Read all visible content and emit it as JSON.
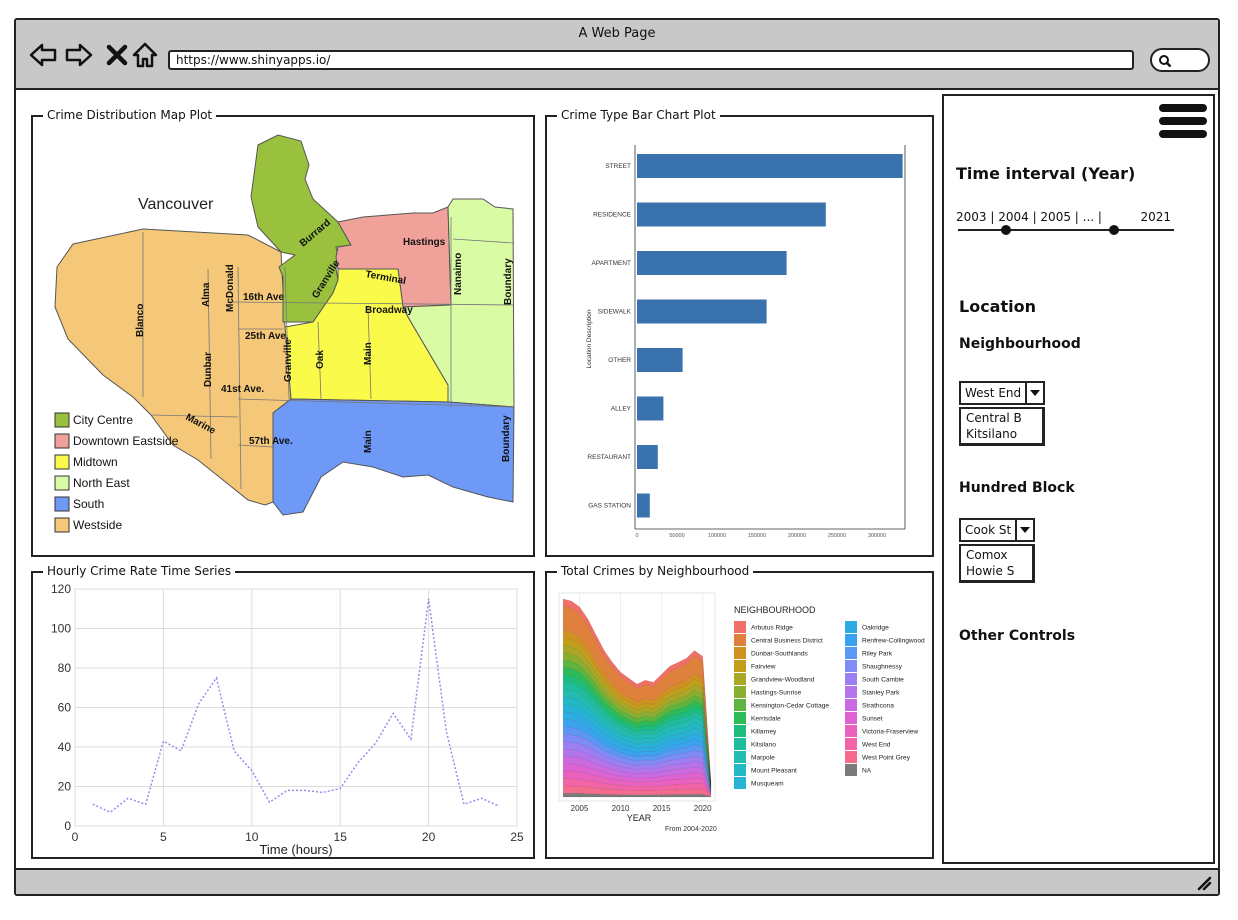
{
  "window": {
    "title": "A Web Page",
    "url": "https://www.shinyapps.io/"
  },
  "map_panel": {
    "title": "Crime Distribution Map Plot",
    "city_label": "Vancouver",
    "region_colors": {
      "City Centre": "#99c13e",
      "Downtown Eastside": "#f0a29a",
      "Midtown": "#fafa4a",
      "North East": "#d8fba4",
      "South": "#6e99f7",
      "Westside": "#f5c779"
    },
    "legend": [
      "City Centre",
      "Downtown Eastside",
      "Midtown",
      "North East",
      "South",
      "Westside"
    ],
    "street_labels": {
      "blanco": "Blanco",
      "alma": "Alma",
      "mcdonald": "McDonald",
      "granville_s": "Granville",
      "dunbar": "Dunbar",
      "oak": "Oak",
      "main_n": "Main",
      "main_s": "Main",
      "ave16": "16th Ave",
      "ave25": "25th Ave.",
      "ave41": "41st Ave.",
      "ave57": "57th Ave.",
      "marine": "Marine",
      "burrard": "Burrard",
      "granville_n": "Granville",
      "hastings": "Hastings",
      "terminal": "Terminal",
      "broadway": "Broadway",
      "nanaimo": "Nanaimo",
      "boundary_n": "Boundary",
      "boundary_s": "Boundary"
    }
  },
  "bar_panel": {
    "title": "Crime Type Bar Chart Plot",
    "chart_data": {
      "type": "bar",
      "orientation": "horizontal",
      "ylabel": "Location Description",
      "categories": [
        "STREET",
        "RESIDENCE",
        "APARTMENT",
        "SIDEWALK",
        "OTHER",
        "ALLEY",
        "RESTAURANT",
        "GAS STATION"
      ],
      "values": [
        332000,
        236000,
        187000,
        162000,
        57000,
        33000,
        26000,
        16000
      ],
      "x_ticks": [
        0,
        50000,
        100000,
        150000,
        200000,
        250000,
        300000
      ],
      "xlim": [
        0,
        350000
      ],
      "grid": false,
      "bar_color": "#3a72ad"
    }
  },
  "hourly_panel": {
    "title": "Hourly Crime Rate Time Series",
    "chart_data": {
      "type": "line",
      "xlabel": "Time (hours)",
      "ylabel": "",
      "xlim": [
        0,
        25
      ],
      "ylim": [
        0,
        120
      ],
      "x_ticks": [
        0,
        5,
        10,
        15,
        20,
        25
      ],
      "y_ticks": [
        0,
        20,
        40,
        60,
        80,
        100,
        120
      ],
      "grid": true,
      "line_color": "#8f8ff0",
      "x": [
        1,
        2,
        3,
        4,
        5,
        6,
        7,
        8,
        9,
        10,
        11,
        12,
        13,
        14,
        15,
        16,
        17,
        18,
        19,
        20,
        21,
        22,
        23,
        24
      ],
      "y": [
        11,
        7,
        14,
        11,
        43,
        38,
        62,
        75,
        38,
        28,
        12,
        18,
        18,
        17,
        19,
        32,
        42,
        57,
        44,
        115,
        48,
        11,
        14,
        10
      ]
    }
  },
  "area_panel": {
    "title": "Total Crimes by Neighbourhood",
    "chart_data": {
      "type": "area",
      "stacked": true,
      "xlabel": "YEAR",
      "caption": "From 2004-2020",
      "legend_title": "NEIGHBOURHOOD",
      "x_ticks": [
        2005,
        2010,
        2015,
        2020
      ],
      "xlim": [
        2002.5,
        2021.5
      ],
      "years": [
        2003,
        2004,
        2005,
        2006,
        2007,
        2008,
        2009,
        2010,
        2011,
        2012,
        2013,
        2014,
        2015,
        2016,
        2017,
        2018,
        2019,
        2020,
        2021
      ],
      "totals": [
        100,
        99,
        96,
        90,
        82,
        74,
        68,
        63,
        60,
        57,
        59,
        58,
        62,
        66,
        68,
        70,
        74,
        71,
        8
      ],
      "series": [
        {
          "name": "Arbutus Ridge",
          "color": "#f07067"
        },
        {
          "name": "Central Business District",
          "color": "#e0803d"
        },
        {
          "name": "Dunbar-Southlands",
          "color": "#d39022"
        },
        {
          "name": "Fairview",
          "color": "#c39e1a"
        },
        {
          "name": "Grandview-Woodland",
          "color": "#aaa727"
        },
        {
          "name": "Hastings-Sunrise",
          "color": "#8aae2f"
        },
        {
          "name": "Kensington-Cedar Cottage",
          "color": "#5db53e"
        },
        {
          "name": "Kerrisdale",
          "color": "#2eba56"
        },
        {
          "name": "Killarney",
          "color": "#1dbc7c"
        },
        {
          "name": "Kitsilano",
          "color": "#1fbd9e"
        },
        {
          "name": "Marpole",
          "color": "#22bcb3"
        },
        {
          "name": "Mount Pleasant",
          "color": "#22b8c6"
        },
        {
          "name": "Musqueam",
          "color": "#28b3d6"
        },
        {
          "name": "Oakridge",
          "color": "#2cace2"
        },
        {
          "name": "Renfrew-Collingwood",
          "color": "#3aa2ee"
        },
        {
          "name": "Riley Park",
          "color": "#5b97f5"
        },
        {
          "name": "Shaughnessy",
          "color": "#7f8bf7"
        },
        {
          "name": "South Cambie",
          "color": "#9c7ff3"
        },
        {
          "name": "Stanley Park",
          "color": "#b474ec"
        },
        {
          "name": "Strathcona",
          "color": "#cb6be1"
        },
        {
          "name": "Sunset",
          "color": "#dd63d2"
        },
        {
          "name": "Victoria-Fraserview",
          "color": "#ea62bd"
        },
        {
          "name": "West End",
          "color": "#f264a6"
        },
        {
          "name": "West Point Grey",
          "color": "#f56b8b"
        },
        {
          "name": "NA",
          "color": "#7a7a7a"
        }
      ]
    }
  },
  "sidebar": {
    "time_title": "Time interval (Year)",
    "slider": {
      "tick_text": "2003 | 2004 | 2005 | ... |",
      "end_label": "2021",
      "low_fraction": 0.22,
      "high_fraction": 0.72
    },
    "location_title": "Location",
    "neighbourhood_title": "Neighbourhood",
    "neighbourhood_select": "West End",
    "neighbourhood_options": [
      "Central B",
      "Kitsilano"
    ],
    "hundred_block_title": "Hundred Block",
    "hundred_block_select": "Cook St",
    "hundred_block_options": [
      "Comox",
      "Howie S"
    ],
    "other_title": "Other Controls"
  }
}
